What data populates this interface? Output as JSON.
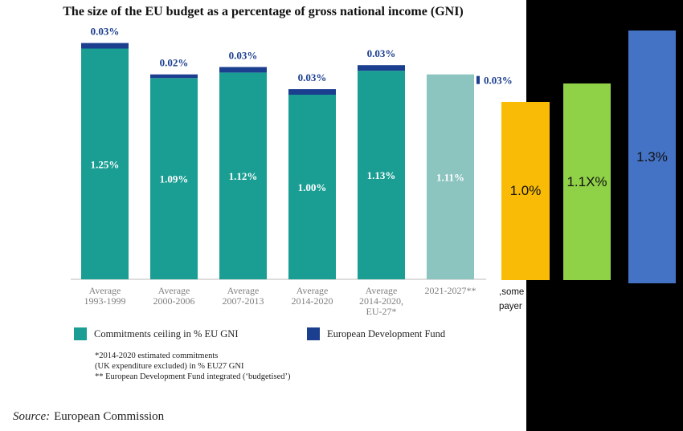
{
  "title": "The size of the EU budget as a percentage of gross national income (GNI)",
  "chart_data": [
    {
      "type": "bar",
      "stacked": true,
      "categories": [
        [
          "Average",
          "1993-1999"
        ],
        [
          "Average",
          "2000-2006"
        ],
        [
          "Average",
          "2007-2013"
        ],
        [
          "Average",
          "2014-2020"
        ],
        [
          "Average",
          "2014-2020,",
          "EU-27*"
        ],
        [
          "2021-2027**"
        ]
      ],
      "series": [
        {
          "name": "Commitments ceiling in % EU GNI",
          "values": [
            1.25,
            1.09,
            1.12,
            1.0,
            1.13,
            1.11
          ],
          "labels": [
            "1.25%",
            "1.09%",
            "1.12%",
            "1.00%",
            "1.13%",
            "1.11%"
          ],
          "color": "#1a9e93",
          "faded_color": "#8cc4c0"
        },
        {
          "name": "European Development Fund",
          "values": [
            0.03,
            0.02,
            0.03,
            0.03,
            0.03,
            0.03
          ],
          "labels": [
            "0.03%",
            "0.02%",
            "0.03%",
            "0.03%",
            "0.03%",
            "0.03%"
          ],
          "color": "#1b3e8f"
        }
      ],
      "ylim": [
        0,
        1.35
      ]
    },
    {
      "type": "bar",
      "values": [
        1.0,
        1.1,
        1.3
      ],
      "labels": [
        "1.0%",
        "1.1X%",
        "1.3%"
      ],
      "colors": [
        "#f9bb06",
        "#8fd147",
        "#4472c4"
      ],
      "ylim": [
        0,
        1.3
      ]
    }
  ],
  "legend": {
    "commitments": "Commitments ceiling in % EU GNI",
    "edf": "European Development Fund"
  },
  "footnotes": "*2014-2020 estimated commitments\n(UK expenditure excluded) in % EU27 GNI\n** European Development Fund integrated (‘budgetised’)",
  "source": {
    "label": "Source:",
    "text": "European Commission"
  },
  "partial_text": [
    ",some",
    "payer"
  ],
  "colors": {
    "axis": "#bbbbbb",
    "label": "#1b3e8f",
    "tick": "#7f7f7f"
  }
}
